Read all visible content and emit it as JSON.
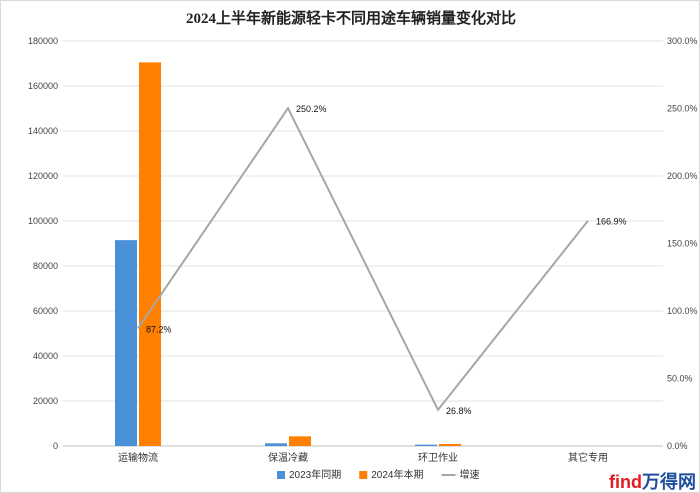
{
  "chart_data": {
    "type": "bar",
    "title": "2024上半年新能源轻卡不同用途车辆销量变化对比",
    "categories": [
      "运输物流",
      "保温冷藏",
      "环卫作业",
      "其它专用"
    ],
    "series": [
      {
        "name": "2023年同期",
        "type": "bar",
        "axis": "left",
        "color": "#4a90d9",
        "values": [
          91500,
          1200,
          600,
          0
        ]
      },
      {
        "name": "2024年本期",
        "type": "bar",
        "axis": "left",
        "color": "#ff7f00",
        "values": [
          170500,
          4300,
          900,
          0
        ]
      },
      {
        "name": "增速",
        "type": "line",
        "axis": "right",
        "color": "#a6a6a6",
        "values": [
          87.2,
          250.2,
          26.8,
          166.9
        ],
        "labels": [
          "87.2%",
          "250.2%",
          "26.8%",
          "166.9%"
        ]
      }
    ],
    "y_left": {
      "min": 0,
      "max": 180000,
      "step": 20000,
      "ticks": [
        "0",
        "20000",
        "40000",
        "60000",
        "80000",
        "100000",
        "120000",
        "140000",
        "160000",
        "180000"
      ]
    },
    "y_right": {
      "min": 0,
      "max": 300,
      "step": 50,
      "ticks": [
        "0.0%",
        "50.0%",
        "100.0%",
        "150.0%",
        "200.0%",
        "250.0%",
        "300.0%"
      ]
    },
    "grid": true,
    "legend_position": "bottom"
  },
  "watermark": {
    "text_a": "find",
    "text_b": "万得网",
    "color_a": "#e31b23",
    "color_b": "#1f4e9d"
  }
}
